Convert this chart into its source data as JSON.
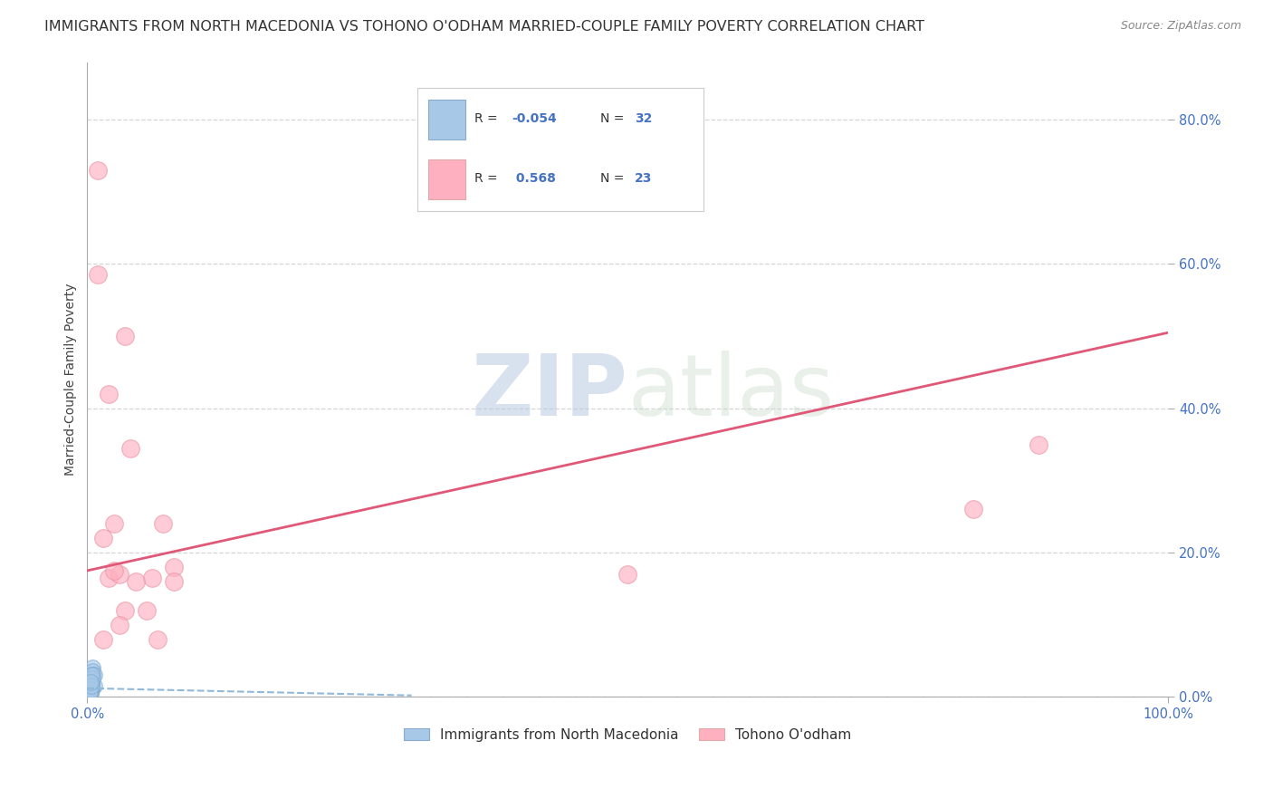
{
  "title": "IMMIGRANTS FROM NORTH MACEDONIA VS TOHONO O'ODHAM MARRIED-COUPLE FAMILY POVERTY CORRELATION CHART",
  "source": "Source: ZipAtlas.com",
  "ylabel": "Married-Couple Family Poverty",
  "xlim": [
    0,
    1.0
  ],
  "ylim": [
    0,
    0.88
  ],
  "xticks": [
    0.0,
    1.0
  ],
  "xticklabels": [
    "0.0%",
    "100.0%"
  ],
  "yticks": [
    0.0,
    0.2,
    0.4,
    0.6,
    0.8
  ],
  "yticklabels": [
    "0.0%",
    "20.0%",
    "40.0%",
    "60.0%",
    "80.0%"
  ],
  "blue_color": "#A8C8E8",
  "pink_color": "#FFB0C0",
  "trendline_blue_color": "#90B8D8",
  "trendline_pink_color": "#E05878",
  "watermark_zip": "ZIP",
  "watermark_atlas": "atlas",
  "blue_scatter_x": [
    0.003,
    0.004,
    0.002,
    0.005,
    0.003,
    0.006,
    0.004,
    0.003,
    0.002,
    0.004,
    0.003,
    0.005,
    0.004,
    0.002,
    0.003,
    0.004,
    0.005,
    0.003,
    0.002,
    0.004,
    0.003,
    0.006,
    0.002,
    0.004,
    0.003,
    0.002,
    0.005,
    0.004,
    0.003,
    0.002,
    0.004,
    0.003
  ],
  "blue_scatter_y": [
    0.02,
    0.03,
    0.01,
    0.04,
    0.005,
    0.015,
    0.025,
    0.008,
    0.012,
    0.018,
    0.022,
    0.035,
    0.01,
    0.005,
    0.015,
    0.02,
    0.03,
    0.01,
    0.005,
    0.025,
    0.02,
    0.03,
    0.015,
    0.01,
    0.005,
    0.02,
    0.025,
    0.03,
    0.01,
    0.005,
    0.015,
    0.02
  ],
  "pink_scatter_x": [
    0.01,
    0.02,
    0.035,
    0.04,
    0.015,
    0.06,
    0.08,
    0.035,
    0.025,
    0.03,
    0.045,
    0.055,
    0.065,
    0.07,
    0.08,
    0.5,
    0.82,
    0.88,
    0.02,
    0.03,
    0.015,
    0.025,
    0.01
  ],
  "pink_scatter_y": [
    0.585,
    0.165,
    0.5,
    0.345,
    0.22,
    0.165,
    0.18,
    0.12,
    0.24,
    0.1,
    0.16,
    0.12,
    0.08,
    0.24,
    0.16,
    0.17,
    0.26,
    0.35,
    0.42,
    0.17,
    0.08,
    0.175,
    0.73
  ],
  "blue_trend_x": [
    0.0,
    0.3
  ],
  "blue_trend_y": [
    0.012,
    0.002
  ],
  "pink_trend_x": [
    0.0,
    1.0
  ],
  "pink_trend_y": [
    0.175,
    0.505
  ],
  "legend_entries": [
    "Immigrants from North Macedonia",
    "Tohono O'odham"
  ],
  "title_fontsize": 11.5,
  "axis_label_fontsize": 10,
  "tick_fontsize": 10.5,
  "source_fontsize": 9,
  "background_color": "#FFFFFF",
  "grid_color": "#CCCCCC",
  "tick_color": "#4472C4",
  "legend_r1": "R = -0.054",
  "legend_n1": "N = 32",
  "legend_r2": "R =  0.568",
  "legend_n2": "N = 23"
}
